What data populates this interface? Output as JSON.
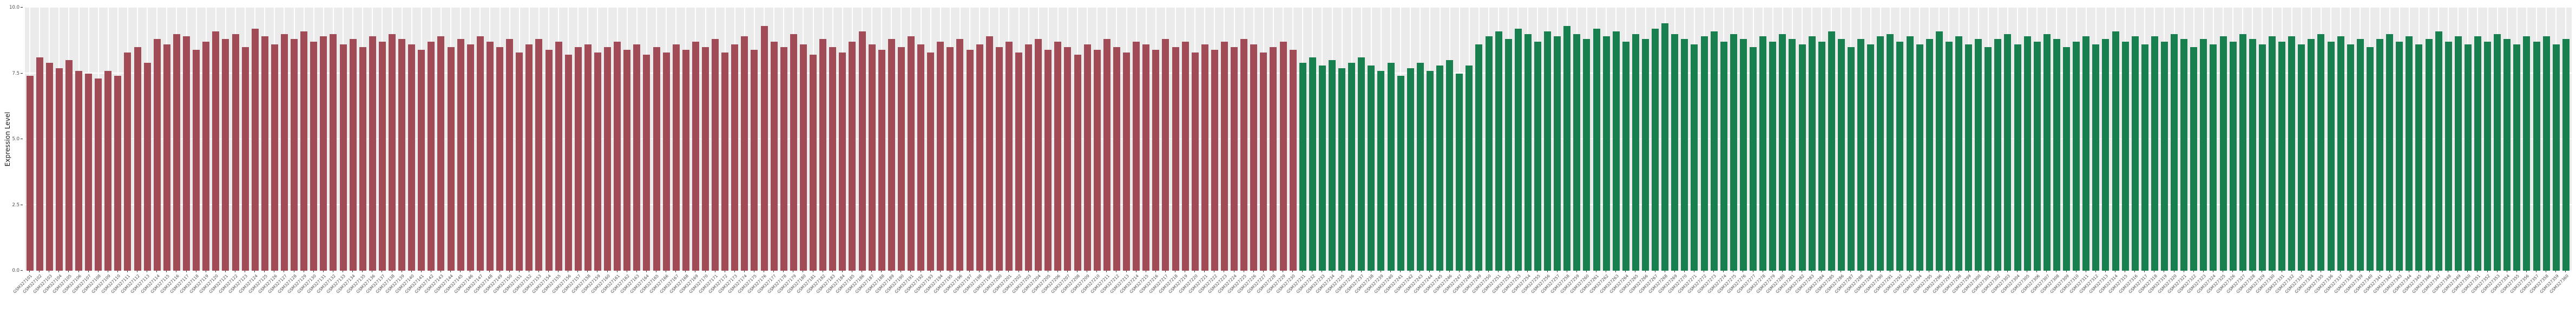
{
  "page": {
    "background": "#ffffff"
  },
  "chart_data": {
    "type": "bar",
    "title": "",
    "xlabel": "",
    "ylabel": "Expression Level",
    "ylim": [
      0,
      10
    ],
    "yticks": [
      0,
      2.5,
      5,
      7.5,
      10
    ],
    "grid": "white-major-gridlines-on-gray-panel",
    "legend": "none",
    "panel_background": "#ebebeb",
    "axis_text_color": "#4d4d4d",
    "groups": [
      {
        "name": "group-red",
        "color": "#a04b56",
        "labels": [
          "GSM327101",
          "GSM327102",
          "GSM327103",
          "GSM327104",
          "GSM327105",
          "GSM327106",
          "GSM327107",
          "GSM327108",
          "GSM327109",
          "GSM327110",
          "GSM327111",
          "GSM327112",
          "GSM327113",
          "GSM327114",
          "GSM327115",
          "GSM327116",
          "GSM327117",
          "GSM327118",
          "GSM327119",
          "GSM327120",
          "GSM327121",
          "GSM327122",
          "GSM327123",
          "GSM327124",
          "GSM327125",
          "GSM327126",
          "GSM327127",
          "GSM327128",
          "GSM327129",
          "GSM327130",
          "GSM327131",
          "GSM327132",
          "GSM327133",
          "GSM327134",
          "GSM327135",
          "GSM327136",
          "GSM327137",
          "GSM327138",
          "GSM327139",
          "GSM327140",
          "GSM327141",
          "GSM327142",
          "GSM327143",
          "GSM327144",
          "GSM327145",
          "GSM327146",
          "GSM327147",
          "GSM327148",
          "GSM327149",
          "GSM327150",
          "GSM327151",
          "GSM327152",
          "GSM327153",
          "GSM327154",
          "GSM327155",
          "GSM327156",
          "GSM327157",
          "GSM327158",
          "GSM327159",
          "GSM327160",
          "GSM327161",
          "GSM327162",
          "GSM327163",
          "GSM327164",
          "GSM327165",
          "GSM327166",
          "GSM327167",
          "GSM327168",
          "GSM327169",
          "GSM327170",
          "GSM327171",
          "GSM327172",
          "GSM327173",
          "GSM327174",
          "GSM327175",
          "GSM327176",
          "GSM327177",
          "GSM327178",
          "GSM327179",
          "GSM327180",
          "GSM327181",
          "GSM327182",
          "GSM327183",
          "GSM327184",
          "GSM327185",
          "GSM327186",
          "GSM327187",
          "GSM327188",
          "GSM327189",
          "GSM327190",
          "GSM327191",
          "GSM327192",
          "GSM327193",
          "GSM327194",
          "GSM327195",
          "GSM327196",
          "GSM327197",
          "GSM327198",
          "GSM327199",
          "GSM327200",
          "GSM327201",
          "GSM327202",
          "GSM327203",
          "GSM327204",
          "GSM327205",
          "GSM327206",
          "GSM327207",
          "GSM327208",
          "GSM327209",
          "GSM327210",
          "GSM327211",
          "GSM327212",
          "GSM327213",
          "GSM327214",
          "GSM327215",
          "GSM327216",
          "GSM327217",
          "GSM327218",
          "GSM327219",
          "GSM327220",
          "GSM327221",
          "GSM327222",
          "GSM327223",
          "GSM327224",
          "GSM327225",
          "GSM327226",
          "GSM327227",
          "GSM327228",
          "GSM327229",
          "GSM327230"
        ],
        "values": [
          7.4,
          8.1,
          7.9,
          7.7,
          8.0,
          7.6,
          7.5,
          7.3,
          7.6,
          7.4,
          8.3,
          8.5,
          7.9,
          8.8,
          8.6,
          9.0,
          8.9,
          8.4,
          8.7,
          9.1,
          8.8,
          9.0,
          8.5,
          9.2,
          8.9,
          8.6,
          9.0,
          8.8,
          9.1,
          8.7,
          8.9,
          9.0,
          8.6,
          8.8,
          8.5,
          8.9,
          8.7,
          9.0,
          8.8,
          8.6,
          8.4,
          8.7,
          8.9,
          8.5,
          8.8,
          8.6,
          8.9,
          8.7,
          8.5,
          8.8,
          8.3,
          8.6,
          8.8,
          8.4,
          8.7,
          8.2,
          8.5,
          8.6,
          8.3,
          8.5,
          8.7,
          8.4,
          8.6,
          8.2,
          8.5,
          8.3,
          8.6,
          8.4,
          8.7,
          8.5,
          8.8,
          8.3,
          8.6,
          8.9,
          8.4,
          9.3,
          8.7,
          8.5,
          9.0,
          8.6,
          8.2,
          8.8,
          8.5,
          8.3,
          8.7,
          9.1,
          8.6,
          8.4,
          8.8,
          8.5,
          8.9,
          8.6,
          8.3,
          8.7,
          8.5,
          8.8,
          8.4,
          8.6,
          8.9,
          8.5,
          8.7,
          8.3,
          8.6,
          8.8,
          8.4,
          8.7,
          8.5,
          8.2,
          8.6,
          8.4,
          8.8,
          8.5,
          8.3,
          8.7,
          8.6,
          8.4,
          8.8,
          8.5,
          8.7,
          8.3,
          8.6,
          8.4,
          8.7,
          8.5,
          8.8,
          8.6,
          8.3,
          8.5,
          8.7,
          8.4
        ]
      },
      {
        "name": "group-green",
        "color": "#17804e",
        "labels": [
          "GSM327231",
          "GSM327232",
          "GSM327233",
          "GSM327234",
          "GSM327235",
          "GSM327236",
          "GSM327237",
          "GSM327238",
          "GSM327239",
          "GSM327240",
          "GSM327241",
          "GSM327242",
          "GSM327243",
          "GSM327244",
          "GSM327245",
          "GSM327246",
          "GSM327247",
          "GSM327248",
          "GSM327249",
          "GSM327250",
          "GSM327251",
          "GSM327252",
          "GSM327253",
          "GSM327254",
          "GSM327255",
          "GSM327256",
          "GSM327257",
          "GSM327258",
          "GSM327259",
          "GSM327260",
          "GSM327261",
          "GSM327262",
          "GSM327263",
          "GSM327264",
          "GSM327265",
          "GSM327266",
          "GSM327267",
          "GSM327268",
          "GSM327269",
          "GSM327270",
          "GSM327271",
          "GSM327272",
          "GSM327273",
          "GSM327274",
          "GSM327275",
          "GSM327276",
          "GSM327277",
          "GSM327278",
          "GSM327279",
          "GSM327280",
          "GSM327281",
          "GSM327282",
          "GSM327283",
          "GSM327284",
          "GSM327285",
          "GSM327286",
          "GSM327287",
          "GSM327288",
          "GSM327289",
          "GSM327290",
          "GSM327291",
          "GSM327292",
          "GSM327293",
          "GSM327294",
          "GSM327295",
          "GSM327296",
          "GSM327297",
          "GSM327298",
          "GSM327299",
          "GSM327300",
          "GSM327301",
          "GSM327302",
          "GSM327303",
          "GSM327304",
          "GSM327305",
          "GSM327306",
          "GSM327307",
          "GSM327308",
          "GSM327309",
          "GSM327310",
          "GSM327311",
          "GSM327312",
          "GSM327313",
          "GSM327314",
          "GSM327315",
          "GSM327316",
          "GSM327317",
          "GSM327318",
          "GSM327319",
          "GSM327320",
          "GSM327321",
          "GSM327322",
          "GSM327323",
          "GSM327324",
          "GSM327325",
          "GSM327326",
          "GSM327327",
          "GSM327328",
          "GSM327329",
          "GSM327330",
          "GSM327331",
          "GSM327332",
          "GSM327333",
          "GSM327334",
          "GSM327335",
          "GSM327336",
          "GSM327337",
          "GSM327338",
          "GSM327339",
          "GSM327340",
          "GSM327341",
          "GSM327342",
          "GSM327343",
          "GSM327344",
          "GSM327345",
          "GSM327346",
          "GSM327347",
          "GSM327348",
          "GSM327349",
          "GSM327350",
          "GSM327351",
          "GSM327352",
          "GSM327353",
          "GSM327354",
          "GSM327355",
          "GSM327356",
          "GSM327357",
          "GSM327358",
          "GSM327359",
          "GSM327360"
        ],
        "values": [
          7.9,
          8.1,
          7.8,
          8.0,
          7.7,
          7.9,
          8.1,
          7.8,
          7.6,
          7.9,
          7.4,
          7.7,
          7.9,
          7.6,
          7.8,
          8.0,
          7.5,
          7.8,
          8.6,
          8.9,
          9.1,
          8.8,
          9.2,
          9.0,
          8.7,
          9.1,
          8.9,
          9.3,
          9.0,
          8.8,
          9.2,
          8.9,
          9.1,
          8.7,
          9.0,
          8.8,
          9.2,
          9.4,
          9.0,
          8.8,
          8.6,
          8.9,
          9.1,
          8.7,
          9.0,
          8.8,
          8.5,
          8.9,
          8.7,
          9.0,
          8.8,
          8.6,
          8.9,
          8.7,
          9.1,
          8.8,
          8.5,
          8.8,
          8.6,
          8.9,
          9.0,
          8.7,
          8.9,
          8.6,
          8.8,
          9.1,
          8.7,
          8.9,
          8.6,
          8.8,
          8.5,
          8.8,
          9.0,
          8.6,
          8.9,
          8.7,
          9.0,
          8.8,
          8.5,
          8.7,
          8.9,
          8.6,
          8.8,
          9.1,
          8.7,
          8.9,
          8.6,
          8.9,
          8.7,
          9.0,
          8.8,
          8.5,
          8.8,
          8.6,
          8.9,
          8.7,
          9.0,
          8.8,
          8.6,
          8.9,
          8.7,
          8.9,
          8.6,
          8.8,
          9.0,
          8.7,
          8.9,
          8.6,
          8.8,
          8.5,
          8.8,
          9.0,
          8.7,
          8.9,
          8.6,
          8.8,
          9.1,
          8.7,
          8.9,
          8.6,
          8.9,
          8.7,
          9.0,
          8.8,
          8.6,
          8.9,
          8.7,
          8.9,
          8.6,
          8.8
        ]
      }
    ]
  }
}
